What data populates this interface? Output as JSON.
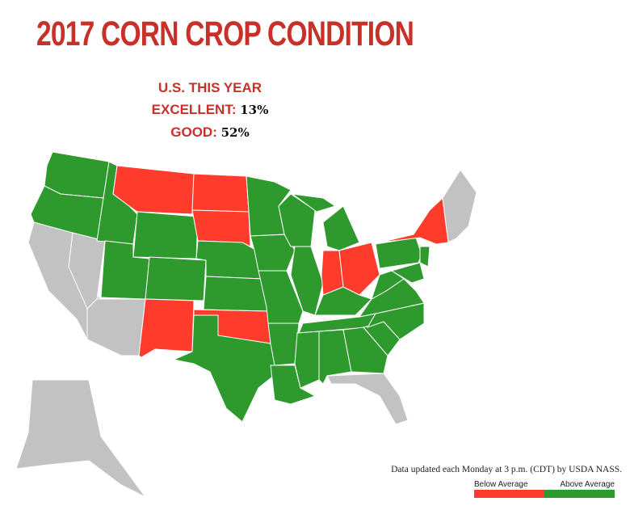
{
  "title": "2017 CORN CROP CONDITION",
  "summary": {
    "heading": "U.S. THIS YEAR",
    "excellent_label": "EXCELLENT:",
    "excellent_value": "13%",
    "good_label": "GOOD:",
    "good_value": "52%"
  },
  "colors": {
    "below": "#ff3b2b",
    "above": "#2e9a2e",
    "no_data": "#c2c2c2",
    "title": "#c8312a"
  },
  "states": {
    "WA": "above",
    "OR": "above",
    "CA": "none",
    "NV": "none",
    "ID": "above",
    "MT": "below",
    "WY": "above",
    "UT": "above",
    "AZ": "none",
    "CO": "above",
    "NM": "below",
    "ND": "below",
    "SD": "below",
    "NE": "above",
    "KS": "above",
    "OK": "below",
    "TX": "above",
    "MN": "above",
    "IA": "above",
    "MO": "above",
    "AR": "above",
    "LA": "above",
    "WI": "above",
    "IL": "above",
    "MI": "above",
    "MI-UP": "above",
    "IN": "below",
    "OH": "below",
    "KY": "above",
    "TN": "above",
    "MS": "above",
    "AL": "above",
    "GA": "above",
    "FL": "none",
    "SC": "above",
    "NC": "above",
    "VA": "above",
    "WV": "above",
    "PA": "above",
    "NY": "below",
    "NJ": "above",
    "MD": "above",
    "NE-REGION": "none",
    "AK": "none"
  },
  "note": "Data updated each Monday at 3 p.m. (CDT) by USDA NASS.",
  "legend": {
    "below": "Below Average",
    "above": "Above Average"
  }
}
